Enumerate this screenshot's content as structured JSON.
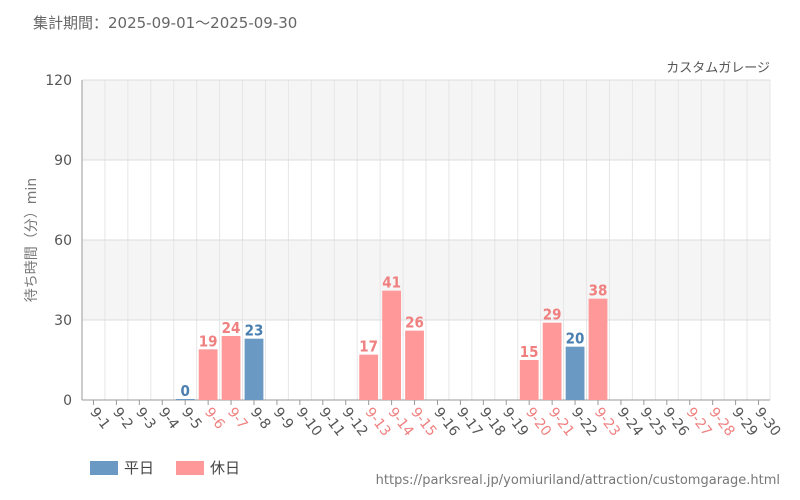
{
  "header": {
    "period_label": "集計期間：2025-09-01～2025-09-30"
  },
  "footer": {
    "url": "https://parksreal.jp/yomiuriland/attraction/customgarage.html"
  },
  "colors": {
    "weekday": "#6a9ac4",
    "holiday": "#ff9999",
    "weekday_label": "#4a7fb0",
    "holiday_label": "#f08080",
    "holiday_tick": "#f08080",
    "weekday_tick": "#555555"
  },
  "chart_data": {
    "type": "bar",
    "title": "カスタムガレージ",
    "ylabel": "待ち時間（分）min",
    "xlabel": "",
    "ylim": [
      0,
      120
    ],
    "yticks": [
      0,
      30,
      60,
      90,
      120
    ],
    "grid": true,
    "legend_position": "bottom-left",
    "categories": [
      "9-1",
      "9-2",
      "9-3",
      "9-4",
      "9-5",
      "9-6",
      "9-7",
      "9-8",
      "9-9",
      "9-10",
      "9-11",
      "9-12",
      "9-13",
      "9-14",
      "9-15",
      "9-16",
      "9-17",
      "9-18",
      "9-19",
      "9-20",
      "9-21",
      "9-22",
      "9-23",
      "9-24",
      "9-25",
      "9-26",
      "9-27",
      "9-28",
      "9-29",
      "9-30"
    ],
    "holidays": [
      "9-6",
      "9-7",
      "9-13",
      "9-14",
      "9-15",
      "9-20",
      "9-21",
      "9-23",
      "9-27",
      "9-28"
    ],
    "series": [
      {
        "name": "平日",
        "points": [
          {
            "x": "9-5",
            "y": 0
          },
          {
            "x": "9-8",
            "y": 23
          },
          {
            "x": "9-22",
            "y": 20
          }
        ]
      },
      {
        "name": "休日",
        "points": [
          {
            "x": "9-6",
            "y": 19
          },
          {
            "x": "9-7",
            "y": 24
          },
          {
            "x": "9-13",
            "y": 17
          },
          {
            "x": "9-14",
            "y": 41
          },
          {
            "x": "9-15",
            "y": 26
          },
          {
            "x": "9-20",
            "y": 15
          },
          {
            "x": "9-21",
            "y": 29
          },
          {
            "x": "9-23",
            "y": 38
          }
        ]
      }
    ]
  }
}
